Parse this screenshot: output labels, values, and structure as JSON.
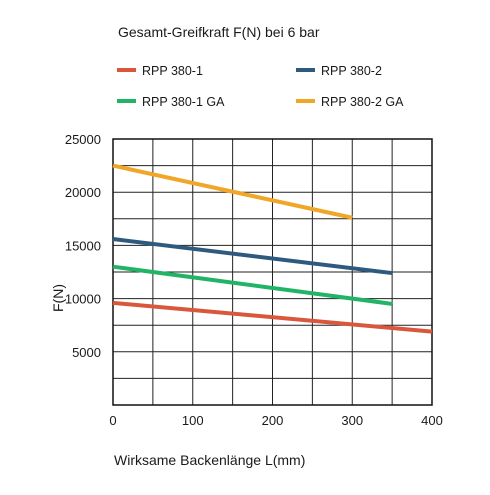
{
  "chart_data": {
    "type": "line",
    "title": "Gesamt-Greifkraft F(N) bei 6 bar",
    "xlabel": "Wirksame Backenlänge L(mm)",
    "ylabel": "F(N)",
    "xlim": [
      0,
      400
    ],
    "ylim": [
      0,
      25000
    ],
    "x_ticks": [
      "0",
      "100",
      "200",
      "300",
      "400"
    ],
    "y_ticks": [
      "5000",
      "10000",
      "15000",
      "20000",
      "25000"
    ],
    "grid": true,
    "legend_position": "top",
    "series": [
      {
        "name": "RPP 380-1",
        "color": "#d9573b",
        "x": [
          0,
          400
        ],
        "y": [
          9600,
          6900
        ]
      },
      {
        "name": "RPP 380-2",
        "color": "#2e5a80",
        "x": [
          0,
          350
        ],
        "y": [
          15600,
          12400
        ]
      },
      {
        "name": "RPP 380-1 GA",
        "color": "#22b466",
        "x": [
          0,
          350
        ],
        "y": [
          13000,
          9500
        ]
      },
      {
        "name": "RPP 380-2 GA",
        "color": "#f2a628",
        "x": [
          0,
          300
        ],
        "y": [
          22500,
          17600
        ]
      }
    ]
  }
}
